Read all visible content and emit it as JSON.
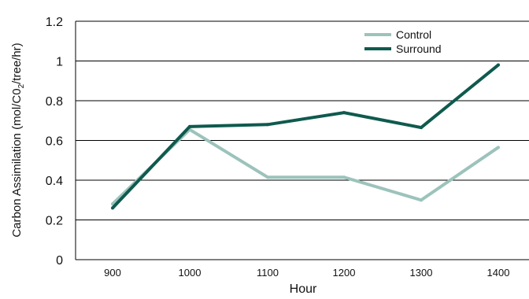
{
  "chart_data": {
    "type": "line",
    "title": "",
    "xlabel": "Hour",
    "ylabel_parts": {
      "pre": "Carbon Assimilation (mol/C0",
      "sub": "2",
      "post": "/tree/hr)"
    },
    "categories": [
      "900",
      "1000",
      "1100",
      "1200",
      "1300",
      "1400"
    ],
    "ylim": [
      0,
      1.2
    ],
    "yticks": [
      "0",
      "0.2",
      "0.4",
      "0.6",
      "0.8",
      "1",
      "1.2"
    ],
    "grid": "horizontal",
    "legend_position": "top-right",
    "series": [
      {
        "name": "Control",
        "color": "#9cc3bb",
        "values": [
          0.28,
          0.655,
          0.415,
          0.415,
          0.3,
          0.565
        ]
      },
      {
        "name": "Surround",
        "color": "#0f5a4e",
        "values": [
          0.26,
          0.67,
          0.68,
          0.74,
          0.665,
          0.98
        ]
      }
    ]
  }
}
